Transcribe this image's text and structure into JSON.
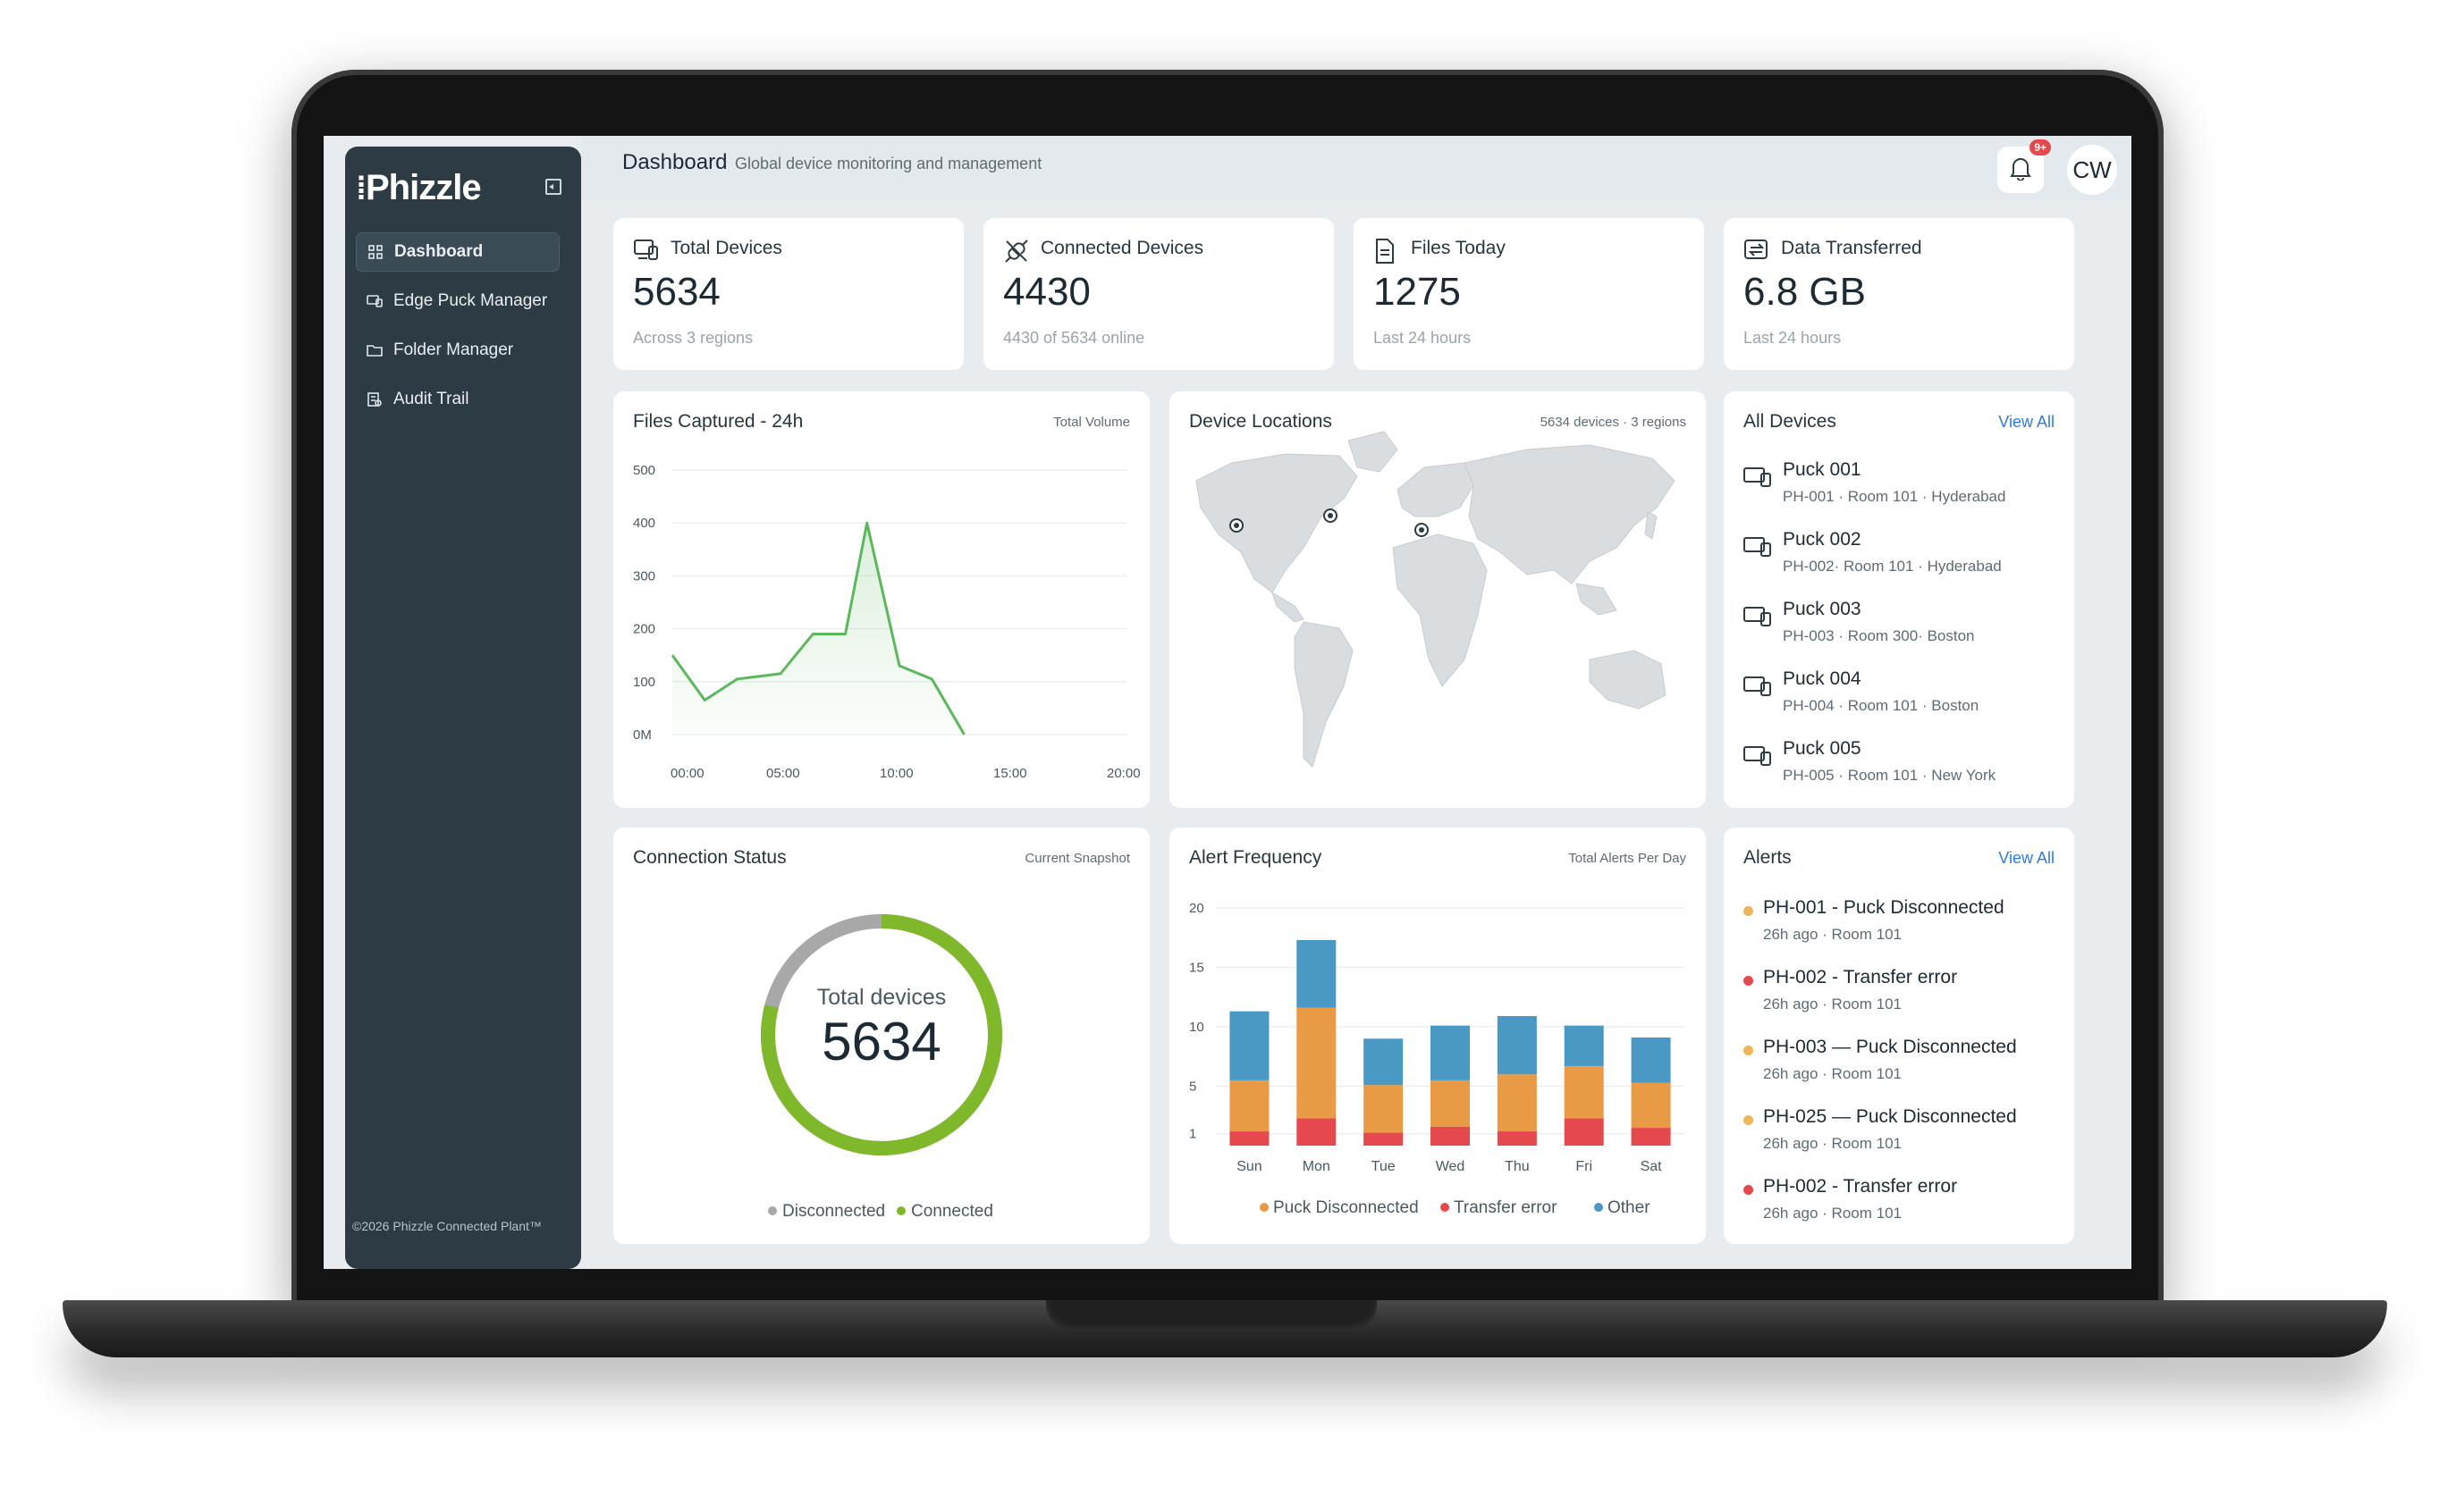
{
  "app": {
    "logo": "Phizzle",
    "footer": "©2026 Phizzle Connected Plant™"
  },
  "sidebar": {
    "items": [
      {
        "label": "Dashboard",
        "icon": "grid-icon",
        "active": true
      },
      {
        "label": "Edge Puck Manager",
        "icon": "devices-icon",
        "active": false
      },
      {
        "label": "Folder Manager",
        "icon": "folder-icon",
        "active": false
      },
      {
        "label": "Audit Trail",
        "icon": "audit-icon",
        "active": false
      }
    ]
  },
  "header": {
    "title": "Dashboard",
    "subtitle": "Global device monitoring and management",
    "notification_badge": "9+",
    "avatar_initials": "CW"
  },
  "stats": [
    {
      "label": "Total Devices",
      "value": "5634",
      "sub": "Across 3 regions",
      "icon": "devices-icon"
    },
    {
      "label": "Connected Devices",
      "value": "4430",
      "sub": "4430 of 5634 online",
      "icon": "plug-icon"
    },
    {
      "label": "Files Today",
      "value": "1275",
      "sub": "Last 24 hours",
      "icon": "file-icon"
    },
    {
      "label": "Data Transferred",
      "value": "6.8 GB",
      "sub": "Last 24 hours",
      "icon": "transfer-icon"
    }
  ],
  "files_chart": {
    "title": "Files Captured - 24h",
    "right_label": "Total Volume"
  },
  "locations": {
    "title": "Device Locations",
    "right_label": "5634 devices · 3 regions"
  },
  "devices": {
    "title": "All Devices",
    "view_all": "View All",
    "items": [
      {
        "name": "Puck 001",
        "sub": "PH-001 · Room 101 · Hyderabad"
      },
      {
        "name": "Puck 002",
        "sub": "PH-002· Room 101 · Hyderabad"
      },
      {
        "name": "Puck 003",
        "sub": "PH-003 · Room 300· Boston"
      },
      {
        "name": "Puck 004",
        "sub": "PH-004 · Room 101 · Boston"
      },
      {
        "name": "Puck 005",
        "sub": "PH-005 · Room 101 · New York"
      }
    ]
  },
  "connection": {
    "title": "Connection Status",
    "right_label": "Current Snapshot",
    "center_label": "Total devices",
    "center_value": "5634",
    "legend_disconnected": "Disconnected",
    "legend_connected": "Connected",
    "connected_fraction": 0.79
  },
  "alert_freq": {
    "title": "Alert Frequency",
    "right_label": "Total Alerts Per Day"
  },
  "alerts": {
    "title": "Alerts",
    "view_all": "View All",
    "items": [
      {
        "title": "PH-001 - Puck Disconnected",
        "sub": "26h ago · Room 101",
        "color": "#f0b45a"
      },
      {
        "title": "PH-002 - Transfer error",
        "sub": "26h ago · Room 101",
        "color": "#e5484d"
      },
      {
        "title": "PH-003 — Puck Disconnected",
        "sub": "26h ago · Room 101",
        "color": "#f0b45a"
      },
      {
        "title": "PH-025 — Puck Disconnected",
        "sub": "26h ago · Room 101",
        "color": "#f0b45a"
      },
      {
        "title": "PH-002 - Transfer error",
        "sub": "26h ago · Room 101",
        "color": "#e5484d"
      }
    ]
  },
  "chart_data": [
    {
      "type": "area",
      "title": "Files Captured - 24h",
      "x_ticks": [
        "00:00",
        "05:00",
        "10:00",
        "15:00",
        "20:00"
      ],
      "y_ticks": [
        "0M",
        "100",
        "200",
        "300",
        "400",
        "500"
      ],
      "ylim": [
        0,
        500
      ],
      "xlim": [
        0,
        21
      ],
      "x": [
        0,
        1.5,
        3,
        5,
        6.5,
        8,
        9,
        10.5,
        12,
        13.5
      ],
      "values": [
        150,
        65,
        105,
        115,
        190,
        190,
        400,
        130,
        105,
        0
      ],
      "color": "#5cb85c"
    },
    {
      "type": "bar",
      "title": "Alert Frequency",
      "categories": [
        "Sun",
        "Mon",
        "Tue",
        "Wed",
        "Thu",
        "Fri",
        "Sat"
      ],
      "y_ticks": [
        "1",
        "5",
        "10",
        "15",
        "20"
      ],
      "ylim": [
        0,
        20
      ],
      "series": [
        {
          "name": "Transfer error",
          "values": [
            1.2,
            2.3,
            1.1,
            1.6,
            1.2,
            2.3,
            1.5
          ],
          "color": "#e5484d"
        },
        {
          "name": "Puck Disconnected",
          "values": [
            4.3,
            9.3,
            4,
            3.9,
            4.8,
            4.4,
            3.8
          ],
          "color": "#e89a45"
        },
        {
          "name": "Other",
          "values": [
            5.8,
            5.7,
            3.9,
            4.6,
            4.9,
            3.4,
            3.8
          ],
          "color": "#4a98c4"
        }
      ],
      "legend": [
        "Puck Disconnected",
        "Transfer error",
        "Other"
      ]
    }
  ]
}
